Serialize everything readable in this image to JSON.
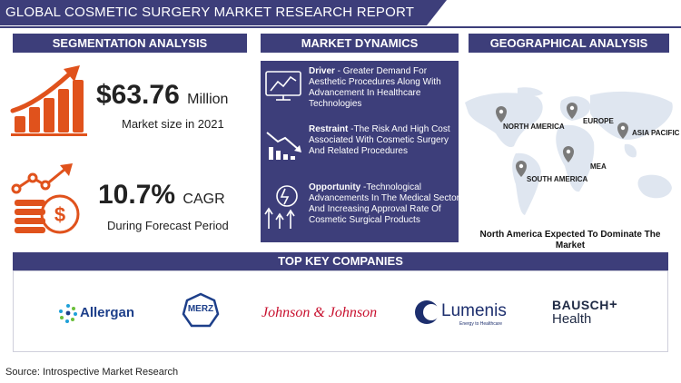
{
  "header": {
    "title": "GLOBAL COSMETIC SURGERY MARKET RESEARCH REPORT"
  },
  "sections": {
    "segmentation": "SEGMENTATION ANALYSIS",
    "dynamics": "MARKET DYNAMICS",
    "geographical": "GEOGRAPHICAL ANALYSIS"
  },
  "market_size": {
    "value": "$63.76",
    "unit": "Million",
    "caption": "Market size in 2021"
  },
  "cagr": {
    "value": "10.7%",
    "unit": "CAGR",
    "caption": "During Forecast Period"
  },
  "dynamics": [
    {
      "label": "Driver",
      "text": " - Greater Demand For Aesthetic Procedures Along With Advancement In Healthcare Technologies"
    },
    {
      "label": "Restraint",
      "text": " -The Risk And High Cost Associated With Cosmetic Surgery And Related Procedures"
    },
    {
      "label": "Opportunity",
      "text": " -Technological Advancements In The Medical Sector And Increasing Approval Rate Of Cosmetic Surgical Products"
    }
  ],
  "regions": [
    "NORTH AMERICA",
    "EUROPE",
    "ASIA PACIFIC",
    "MEA",
    "SOUTH AMERICA"
  ],
  "geo_caption": "North America Expected To Dominate The Market",
  "companies_title": "TOP KEY COMPANIES",
  "companies": {
    "allergan": "Allergan",
    "merz": "MERZ",
    "jnj": "Johnson & Johnson",
    "lumenis": "Lumenis",
    "lumenis_tag": "Energy to Healthcare",
    "bausch_1": "BAUSCH",
    "bausch_2": "Health"
  },
  "source": "Source: Introspective Market Research",
  "colors": {
    "navy": "#3d3e7a",
    "orange": "#e0521c",
    "map": "#dfe6f0",
    "pin": "#7a7a7a"
  }
}
